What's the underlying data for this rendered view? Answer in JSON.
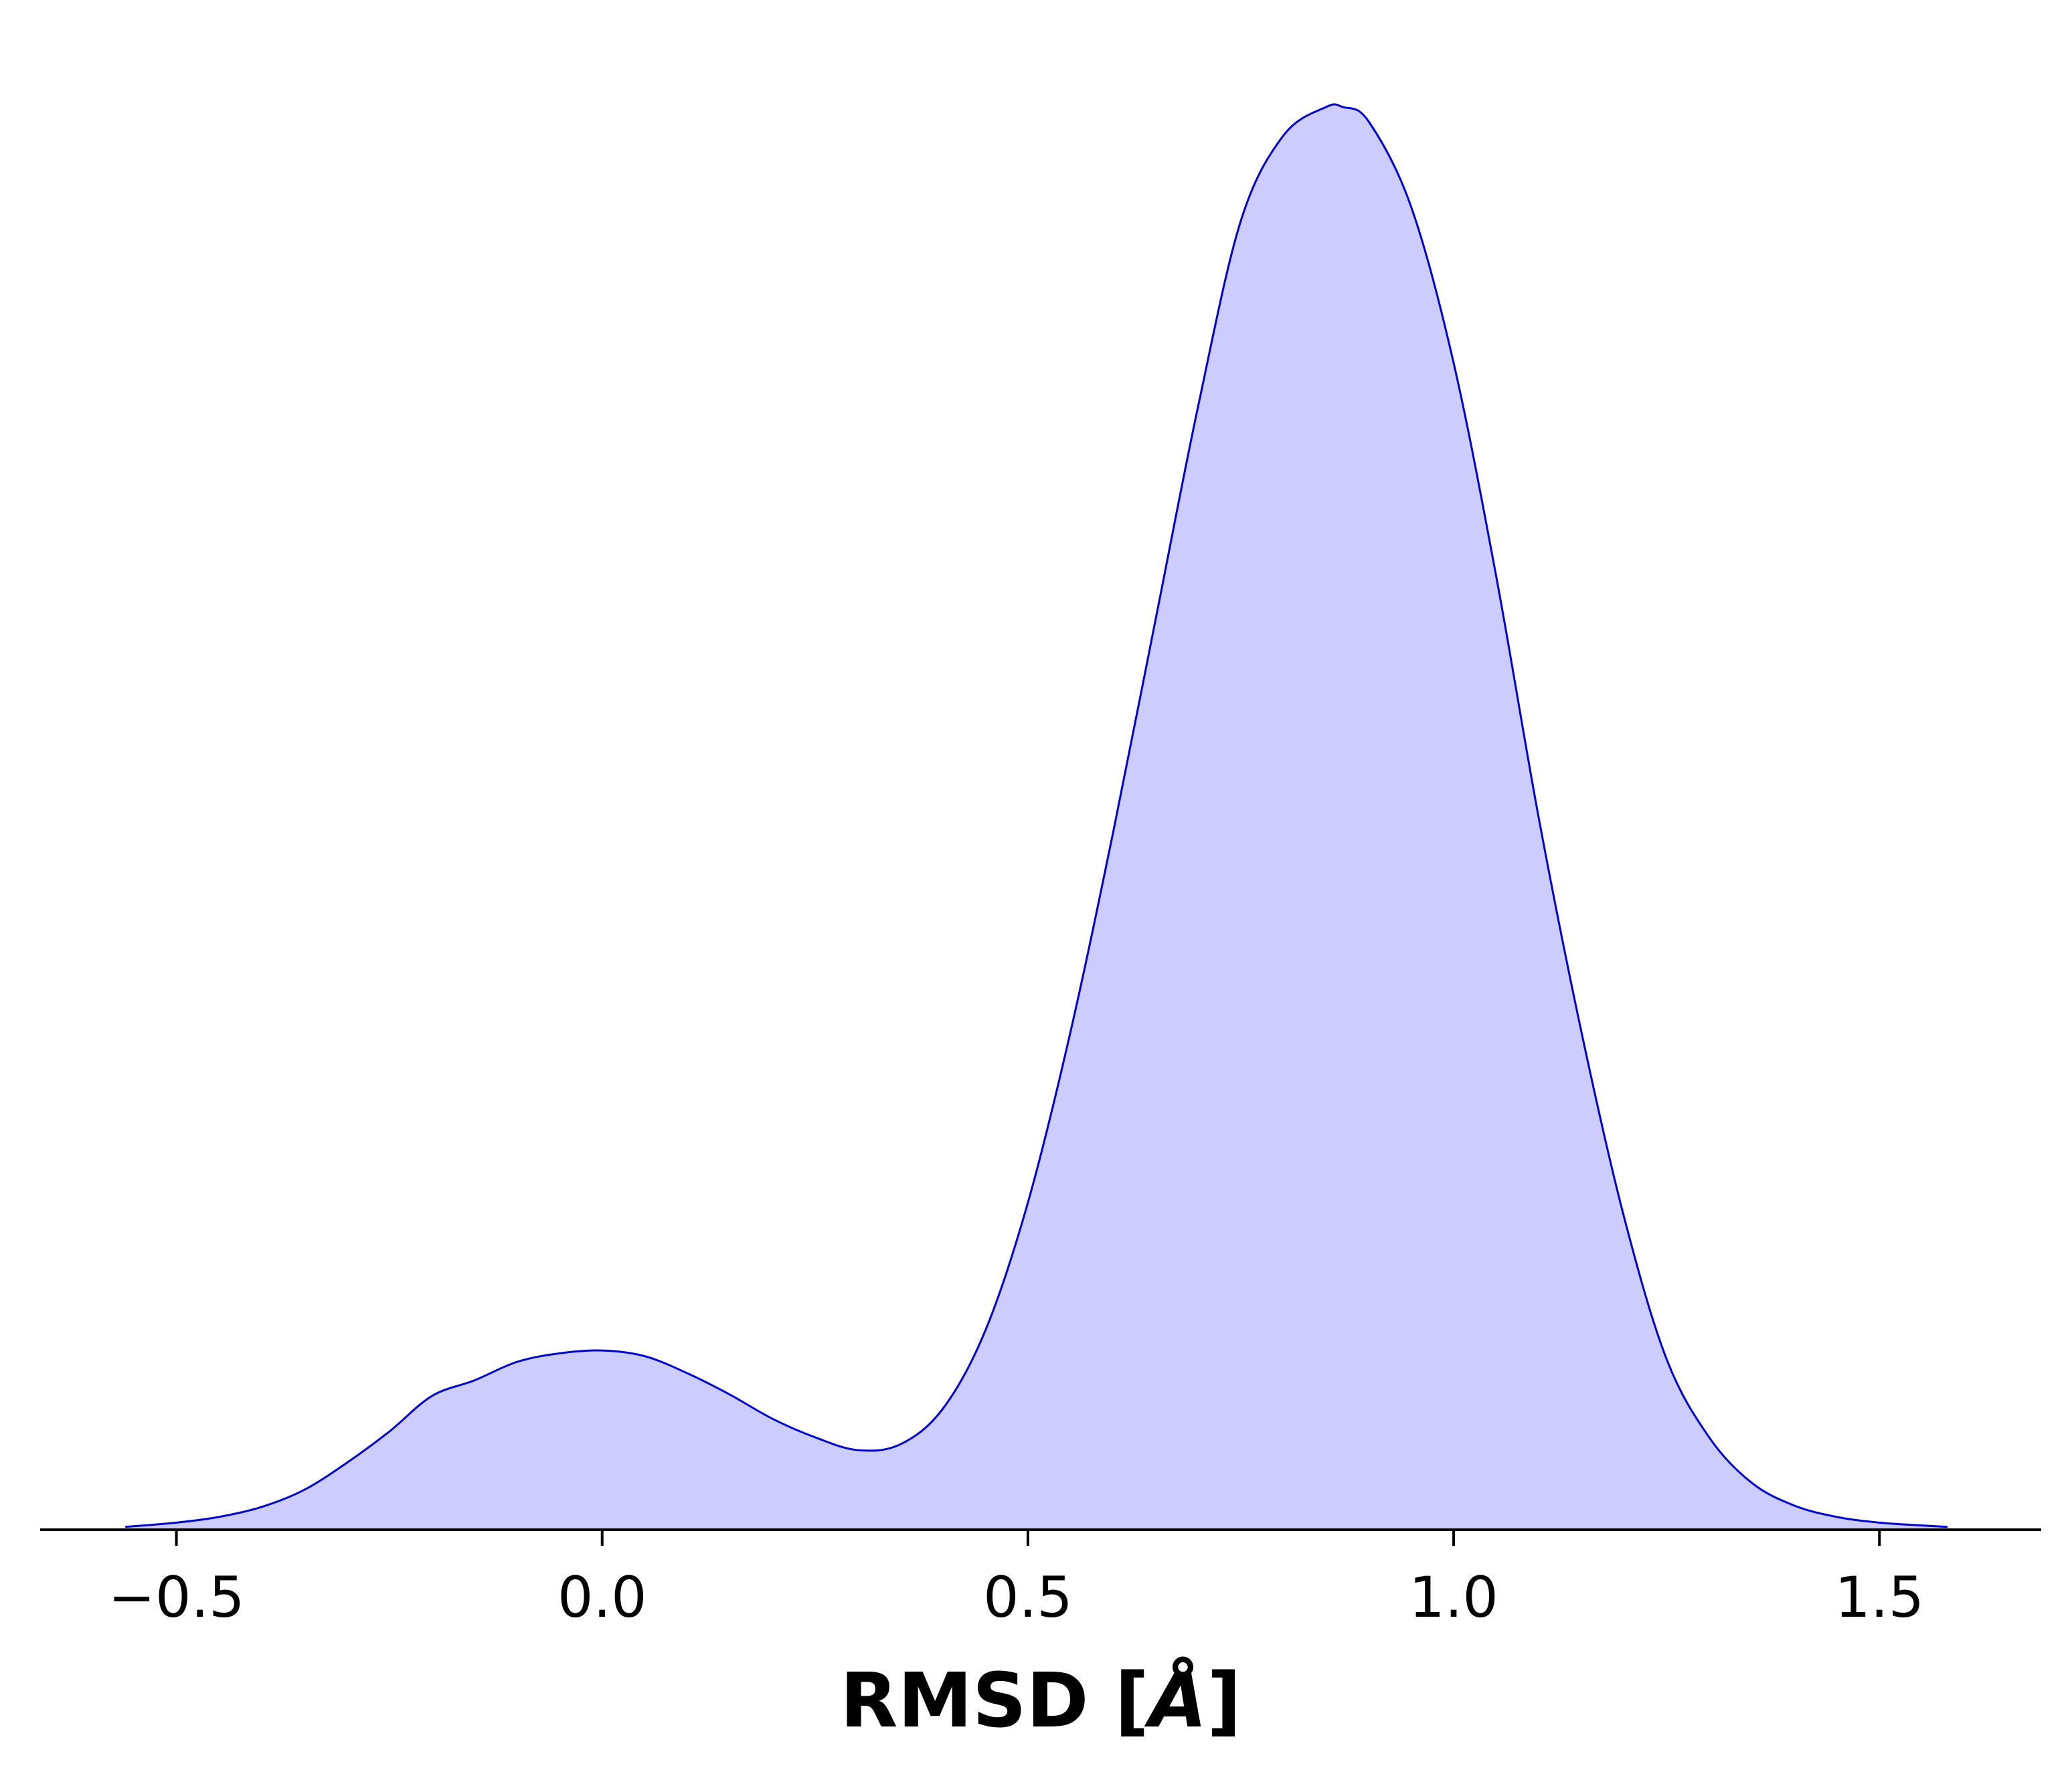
{
  "chart_data": {
    "type": "area",
    "title": "",
    "xlabel_text": "RMSD [",
    "xlabel_unit": "Å",
    "xlabel_close": "]",
    "ylabel": "",
    "xlim": [
      -0.66,
      1.69
    ],
    "ylim": [
      0,
      1.0
    ],
    "x_ticks": [
      {
        "value": -0.5,
        "label": "−0.5"
      },
      {
        "value": 0.0,
        "label": "0.0"
      },
      {
        "value": 0.5,
        "label": "0.5"
      },
      {
        "value": 1.0,
        "label": "1.0"
      },
      {
        "value": 1.5,
        "label": "1.5"
      }
    ],
    "grid": false,
    "legend": "none",
    "fill_color": "#ccccff",
    "line_color": "#0000cc",
    "series": [
      {
        "x": [
          -0.56,
          -0.5,
          -0.45,
          -0.4,
          -0.35,
          -0.3,
          -0.25,
          -0.2,
          -0.15,
          -0.1,
          -0.05,
          0.0,
          0.05,
          0.1,
          0.15,
          0.2,
          0.25,
          0.3,
          0.35,
          0.4,
          0.45,
          0.5,
          0.55,
          0.6,
          0.65,
          0.7,
          0.75,
          0.8,
          0.85,
          0.87,
          0.9,
          0.95,
          1.0,
          1.05,
          1.1,
          1.15,
          1.2,
          1.25,
          1.3,
          1.35,
          1.4,
          1.45,
          1.5,
          1.55,
          1.58
        ],
        "y": [
          0.002,
          0.005,
          0.009,
          0.016,
          0.028,
          0.047,
          0.069,
          0.094,
          0.105,
          0.118,
          0.124,
          0.126,
          0.122,
          0.11,
          0.095,
          0.078,
          0.065,
          0.056,
          0.06,
          0.085,
          0.14,
          0.23,
          0.35,
          0.49,
          0.64,
          0.79,
          0.92,
          0.98,
          1.0,
          1.0,
          0.99,
          0.93,
          0.82,
          0.67,
          0.5,
          0.35,
          0.22,
          0.12,
          0.065,
          0.033,
          0.017,
          0.009,
          0.005,
          0.003,
          0.002
        ]
      }
    ]
  }
}
